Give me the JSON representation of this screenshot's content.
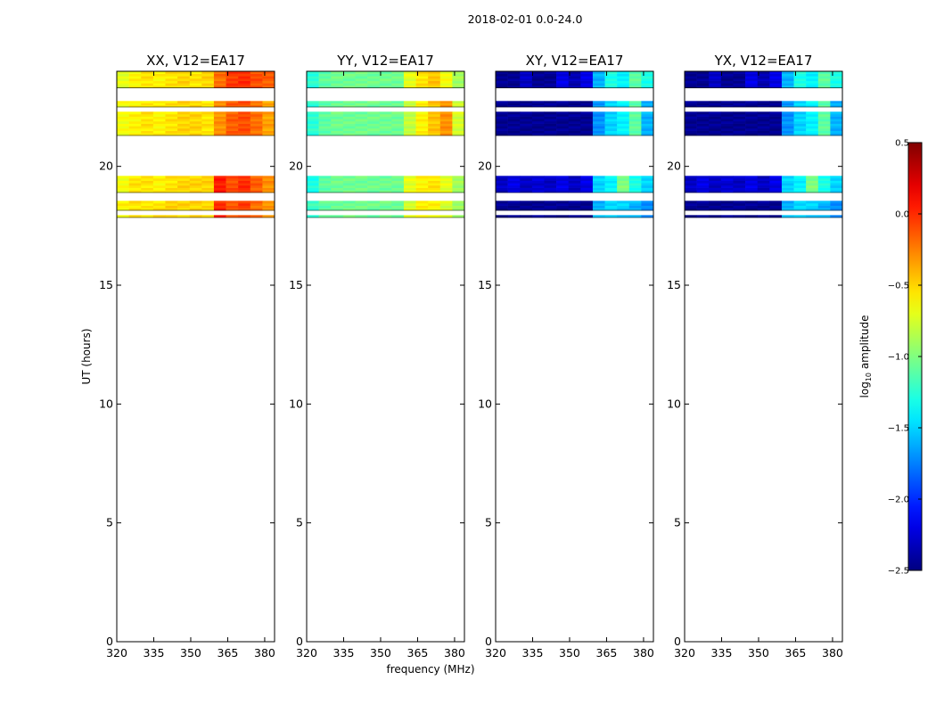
{
  "suptitle": "2018-02-01 0.0-24.0",
  "chart_data": [
    {
      "type": "heatmap",
      "title": "XX, V12=EA17",
      "xlabel": "",
      "ylabel": "UT (hours)",
      "xlim": [
        320,
        384
      ],
      "ylim": [
        0,
        24
      ],
      "xticks": [
        320,
        335,
        350,
        365,
        380
      ],
      "yticks": [
        0,
        5,
        10,
        15,
        20
      ],
      "data_time_ranges_hours": [
        [
          17.85,
          17.95
        ],
        [
          18.15,
          18.55
        ],
        [
          18.9,
          19.6
        ],
        [
          21.3,
          22.3
        ],
        [
          22.5,
          22.75
        ],
        [
          23.3,
          24
        ]
      ],
      "log10_amplitude": {
        "base": -0.55,
        "high_band_mhz": [
          362,
          383
        ],
        "high_band_value": -0.1,
        "peak_value": 0.3
      },
      "cell_values_log10_amp_by_ut_band": [
        {
          "ut": 23.65,
          "values": [
            -0.7,
            -0.6,
            -0.55,
            -0.6,
            -0.55,
            -0.5,
            -0.55,
            -0.5,
            -0.2,
            -0.05,
            0.0,
            -0.1,
            -0.15
          ]
        },
        {
          "ut": 21.8,
          "values": [
            -0.65,
            -0.6,
            -0.55,
            -0.6,
            -0.55,
            -0.5,
            -0.5,
            -0.55,
            -0.3,
            -0.15,
            -0.1,
            -0.2,
            -0.35
          ]
        },
        {
          "ut": 19.2,
          "values": [
            -0.65,
            -0.55,
            -0.55,
            -0.6,
            -0.55,
            -0.5,
            -0.5,
            -0.5,
            0.05,
            -0.1,
            0.0,
            -0.15,
            -0.3
          ]
        },
        {
          "ut": 18.35,
          "values": [
            -0.6,
            -0.55,
            -0.55,
            -0.55,
            -0.5,
            -0.5,
            -0.5,
            -0.5,
            0.0,
            -0.15,
            -0.05,
            -0.2,
            -0.3
          ]
        }
      ]
    },
    {
      "type": "heatmap",
      "title": "YY, V12=EA17",
      "xlabel": "frequency (MHz)",
      "ylabel": "",
      "xlim": [
        320,
        384
      ],
      "ylim": [
        0,
        24
      ],
      "xticks": [
        320,
        335,
        350,
        365,
        380
      ],
      "yticks": [
        0,
        5,
        10,
        15,
        20
      ],
      "data_time_ranges_hours": [
        [
          17.85,
          17.95
        ],
        [
          18.15,
          18.55
        ],
        [
          18.9,
          19.6
        ],
        [
          21.3,
          22.3
        ],
        [
          22.5,
          22.75
        ],
        [
          23.3,
          24
        ]
      ],
      "log10_amplitude": {
        "base": -1.05,
        "high_band_mhz": [
          362,
          383
        ],
        "high_band_value": -0.6,
        "peak_value": -0.25
      },
      "cell_values_log10_amp_by_ut_band": [
        {
          "ut": 23.65,
          "values": [
            -1.25,
            -1.1,
            -1.05,
            -1.05,
            -1.05,
            -1.05,
            -1.05,
            -1.05,
            -0.7,
            -0.55,
            -0.45,
            -0.65,
            -0.9
          ]
        },
        {
          "ut": 21.8,
          "values": [
            -1.25,
            -1.1,
            -1.05,
            -1.05,
            -1.05,
            -1.05,
            -1.05,
            -1.05,
            -0.8,
            -0.6,
            -0.45,
            -0.3,
            -0.75
          ]
        },
        {
          "ut": 19.2,
          "values": [
            -1.3,
            -1.1,
            -1.05,
            -1.05,
            -1.05,
            -1.05,
            -1.05,
            -1.05,
            -0.7,
            -0.6,
            -0.55,
            -0.7,
            -0.9
          ]
        },
        {
          "ut": 18.35,
          "values": [
            -1.2,
            -1.1,
            -1.05,
            -1.05,
            -1.05,
            -1.05,
            -1.05,
            -1.05,
            -0.75,
            -0.6,
            -0.6,
            -0.75,
            -0.9
          ]
        }
      ]
    },
    {
      "type": "heatmap",
      "title": "XY, V12=EA17",
      "xlabel": "",
      "ylabel": "",
      "xlim": [
        320,
        384
      ],
      "ylim": [
        0,
        24
      ],
      "xticks": [
        320,
        335,
        350,
        365,
        380
      ],
      "yticks": [
        0,
        5,
        10,
        15,
        20
      ],
      "data_time_ranges_hours": [
        [
          17.85,
          17.95
        ],
        [
          18.15,
          18.55
        ],
        [
          18.9,
          19.6
        ],
        [
          21.3,
          22.3
        ],
        [
          22.5,
          22.75
        ],
        [
          23.3,
          24
        ]
      ],
      "log10_amplitude": {
        "base": -2.4,
        "high_band_mhz": [
          362,
          383
        ],
        "high_band_value": -1.4,
        "peak_value": -0.9
      },
      "cell_values_log10_amp_by_ut_band": [
        {
          "ut": 23.65,
          "values": [
            -2.45,
            -2.45,
            -2.3,
            -2.45,
            -2.45,
            -2.2,
            -2.35,
            -2.2,
            -1.6,
            -1.3,
            -1.4,
            -1.1,
            -1.3
          ]
        },
        {
          "ut": 21.8,
          "values": [
            -2.45,
            -2.45,
            -2.45,
            -2.45,
            -2.45,
            -2.45,
            -2.45,
            -2.45,
            -1.7,
            -1.5,
            -1.4,
            -1.1,
            -1.6
          ]
        },
        {
          "ut": 19.2,
          "values": [
            -2.3,
            -2.2,
            -2.3,
            -2.25,
            -2.3,
            -2.2,
            -2.3,
            -2.2,
            -1.5,
            -1.4,
            -1.0,
            -1.3,
            -1.5
          ]
        },
        {
          "ut": 18.35,
          "values": [
            -2.45,
            -2.45,
            -2.45,
            -2.45,
            -2.45,
            -2.45,
            -2.45,
            -2.45,
            -1.6,
            -1.5,
            -1.5,
            -1.6,
            -1.7
          ]
        }
      ]
    },
    {
      "type": "heatmap",
      "title": "YX, V12=EA17",
      "xlabel": "",
      "ylabel": "",
      "xlim": [
        320,
        384
      ],
      "ylim": [
        0,
        24
      ],
      "xticks": [
        320,
        335,
        350,
        365,
        380
      ],
      "yticks": [
        0,
        5,
        10,
        15,
        20
      ],
      "data_time_ranges_hours": [
        [
          17.85,
          17.95
        ],
        [
          18.15,
          18.55
        ],
        [
          18.9,
          19.6
        ],
        [
          21.3,
          22.3
        ],
        [
          22.5,
          22.75
        ],
        [
          23.3,
          24
        ]
      ],
      "log10_amplitude": {
        "base": -2.4,
        "high_band_mhz": [
          362,
          383
        ],
        "high_band_value": -1.4,
        "peak_value": -0.9
      },
      "cell_values_log10_amp_by_ut_band": [
        {
          "ut": 23.65,
          "values": [
            -2.45,
            -2.45,
            -2.3,
            -2.45,
            -2.45,
            -2.2,
            -2.35,
            -2.2,
            -1.6,
            -1.3,
            -1.4,
            -1.1,
            -1.3
          ]
        },
        {
          "ut": 21.8,
          "values": [
            -2.45,
            -2.45,
            -2.45,
            -2.45,
            -2.45,
            -2.45,
            -2.45,
            -2.45,
            -1.7,
            -1.5,
            -1.4,
            -1.1,
            -1.6
          ]
        },
        {
          "ut": 19.2,
          "values": [
            -2.3,
            -2.2,
            -2.3,
            -2.25,
            -2.3,
            -2.2,
            -2.3,
            -2.2,
            -1.5,
            -1.4,
            -1.0,
            -1.3,
            -1.5
          ]
        },
        {
          "ut": 18.35,
          "values": [
            -2.45,
            -2.45,
            -2.45,
            -2.45,
            -2.45,
            -2.45,
            -2.45,
            -2.45,
            -1.6,
            -1.5,
            -1.5,
            -1.6,
            -1.7
          ]
        }
      ]
    }
  ],
  "colorbar": {
    "label_prefix": "log",
    "label_subscript": "10",
    "label_suffix": " amplitude",
    "min": -2.5,
    "max": 0.5,
    "ticks": [
      0.5,
      0.0,
      -0.5,
      -1.0,
      -1.5,
      -2.0,
      -2.5
    ],
    "tick_labels": [
      "0.5",
      "0.0",
      "−0.5",
      "−1.0",
      "−1.5",
      "−2.0",
      "−2.5"
    ],
    "colormap": "jet"
  }
}
